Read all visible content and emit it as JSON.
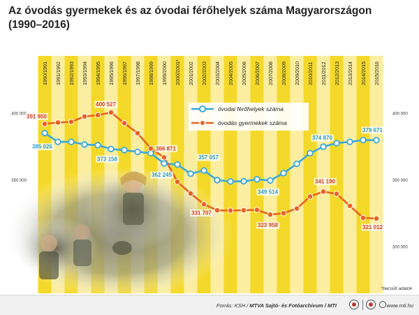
{
  "title": "Az óvodás gyermekek és az óvodai férőhelyek száma Magyarországon (1990–2016)",
  "note": "*becsült adatok",
  "footer": {
    "source_prefix": "Forrás: KSH / ",
    "source_org": "MTVA Sajtó- és Fotóarchívum / MTI",
    "website": "www.mti.hu"
  },
  "colors": {
    "capacity": "#3aa8dc",
    "children": "#e8631f",
    "capacity_label": "#2a9bd3",
    "children_label": "#d23a1e",
    "stripe_dark": "#f5d92a",
    "stripe_light": "#fbeea0"
  },
  "chart_data": {
    "type": "line",
    "categories": [
      "1990/1991",
      "1991/1992",
      "1992/1993",
      "1993/1994",
      "1994/1995",
      "1995/1996",
      "1996/1997",
      "1997/1998",
      "1998/1999",
      "1999/2000",
      "2000/2001*",
      "2001/2002",
      "2002/2003",
      "2003/2004",
      "2004/2005",
      "2005/2006",
      "2006/2007",
      "2007/2008",
      "2008/2009",
      "2009/2010",
      "2010/2011",
      "2011/2012",
      "2012/2013",
      "2013/2014",
      "2014/2015",
      "2015/2016"
    ],
    "y_ticks_left": [
      "400 000",
      "350 000"
    ],
    "y_ticks_right": [
      "400 000",
      "350 000",
      "300 000"
    ],
    "ylim": [
      300000,
      413000
    ],
    "legend_position": "top-center",
    "series": [
      {
        "key": "capacity",
        "name": "óvodai férőhelyek száma",
        "values": [
          385026,
          378500,
          378500,
          376500,
          376000,
          373158,
          372300,
          371000,
          370000,
          362245,
          361500,
          354600,
          357057,
          349800,
          348800,
          348900,
          350400,
          349514,
          355000,
          362000,
          370000,
          374870,
          377500,
          378500,
          379800,
          379671
        ],
        "labels": [
          {
            "index": 0,
            "text": "385 026"
          },
          {
            "index": 5,
            "text": "373 158"
          },
          {
            "index": 9,
            "text": "362 245"
          },
          {
            "index": 12,
            "text": "357 057"
          },
          {
            "index": 17,
            "text": "349 514"
          },
          {
            "index": 21,
            "text": "374 870"
          },
          {
            "index": 25,
            "text": "379 671"
          }
        ]
      },
      {
        "key": "children",
        "name": "óvodás gyermekek száma",
        "values": [
          391950,
          393000,
          393500,
          397500,
          398500,
          400527,
          392500,
          385000,
          373500,
          366871,
          348500,
          339800,
          331707,
          327200,
          327000,
          327200,
          327500,
          323958,
          325000,
          328500,
          337500,
          341190,
          339500,
          330500,
          321500,
          321012
        ],
        "labels": [
          {
            "index": 0,
            "text": "391 950"
          },
          {
            "index": 5,
            "text": "400 527"
          },
          {
            "index": 9,
            "text": "366 871"
          },
          {
            "index": 12,
            "text": "331 707"
          },
          {
            "index": 17,
            "text": "323 958"
          },
          {
            "index": 21,
            "text": "341 190"
          },
          {
            "index": 25,
            "text": "321 012"
          }
        ]
      }
    ]
  }
}
